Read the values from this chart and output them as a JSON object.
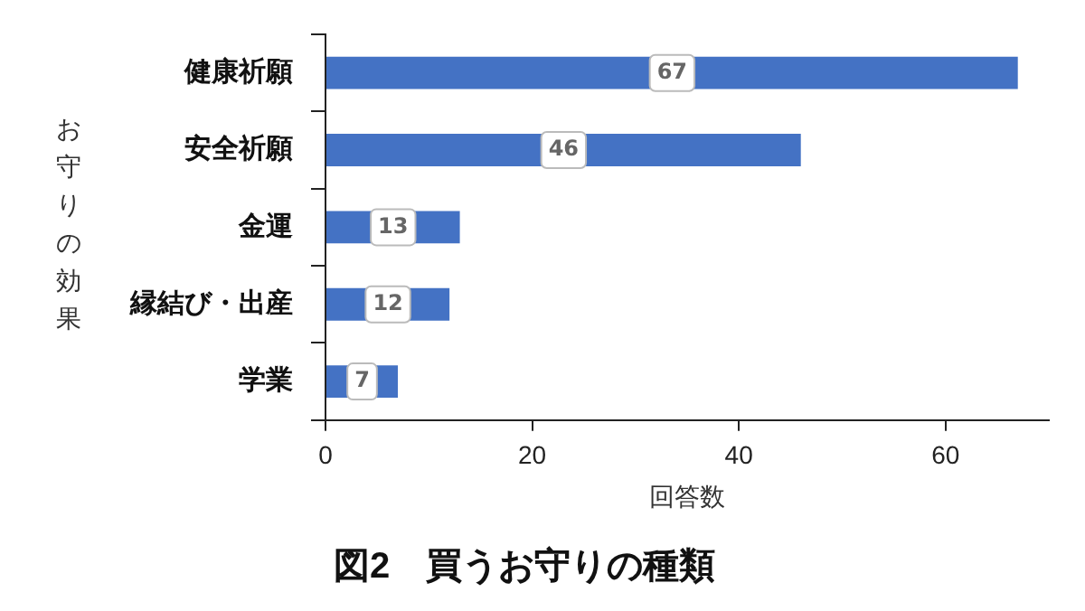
{
  "chart_data": {
    "type": "bar",
    "orientation": "horizontal",
    "title": "図2　買うお守りの種類",
    "xlabel": "回答数",
    "ylabel": "お守りの効果",
    "categories": [
      "健康祈願",
      "安全祈願",
      "金運",
      "縁結び・出産",
      "学業"
    ],
    "values": [
      67,
      46,
      13,
      12,
      7
    ],
    "color": "#4472c4",
    "xlim": [
      0,
      70
    ],
    "xticks": [
      0,
      20,
      40,
      60
    ],
    "grid": false,
    "data_labels": true
  }
}
